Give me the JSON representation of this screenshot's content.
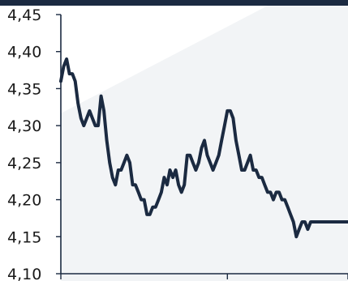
{
  "colors": {
    "top_bar": "#1b2a41",
    "line": "#1b2a41",
    "axis": "#1b2a41",
    "background": "#ffffff",
    "background_accent": "#f2f4f6"
  },
  "chart_data": {
    "type": "line",
    "title": "",
    "xlabel": "",
    "ylabel": "",
    "ylim": [
      4.1,
      4.45
    ],
    "yticks": [
      "4,45",
      "4,40",
      "4,35",
      "4,30",
      "4,25",
      "4,20",
      "4,15",
      "4,10"
    ],
    "ytick_values": [
      4.45,
      4.4,
      4.35,
      4.3,
      4.25,
      4.2,
      4.15,
      4.1
    ],
    "xlim": [
      0,
      100
    ],
    "x_tick_positions": [
      0,
      58,
      100
    ],
    "grid": false,
    "legend": "none",
    "series": [
      {
        "x": [
          0,
          1,
          2,
          3,
          4,
          5,
          6,
          7,
          8,
          9,
          10,
          11,
          12,
          13,
          14,
          15,
          16,
          17,
          18,
          19,
          20,
          21,
          22,
          23,
          24,
          25,
          26,
          27,
          28,
          29,
          30,
          31,
          32,
          33,
          34,
          35,
          36,
          37,
          38,
          39,
          40,
          41,
          42,
          43,
          44,
          45,
          46,
          47,
          48,
          49,
          50,
          51,
          52,
          53,
          54,
          55,
          56,
          57,
          58,
          59,
          60,
          61,
          62,
          63,
          64,
          65,
          66,
          67,
          68,
          69,
          70,
          71,
          72,
          73,
          74,
          75,
          76,
          77,
          78,
          79,
          80,
          81,
          82,
          83,
          84,
          85,
          86,
          87,
          88,
          89,
          90,
          91,
          92,
          93,
          94,
          95,
          96,
          97,
          98,
          99,
          100
        ],
        "values": [
          4.36,
          4.38,
          4.39,
          4.37,
          4.37,
          4.36,
          4.33,
          4.31,
          4.3,
          4.31,
          4.32,
          4.31,
          4.3,
          4.3,
          4.34,
          4.32,
          4.28,
          4.25,
          4.23,
          4.22,
          4.24,
          4.24,
          4.25,
          4.26,
          4.25,
          4.22,
          4.22,
          4.21,
          4.2,
          4.2,
          4.18,
          4.18,
          4.19,
          4.19,
          4.2,
          4.21,
          4.23,
          4.22,
          4.24,
          4.23,
          4.24,
          4.22,
          4.21,
          4.22,
          4.26,
          4.26,
          4.25,
          4.24,
          4.25,
          4.27,
          4.28,
          4.26,
          4.25,
          4.24,
          4.25,
          4.26,
          4.28,
          4.3,
          4.32,
          4.32,
          4.31,
          4.28,
          4.26,
          4.24,
          4.24,
          4.25,
          4.26,
          4.24,
          4.24,
          4.23,
          4.23,
          4.22,
          4.21,
          4.21,
          4.2,
          4.21,
          4.21,
          4.2,
          4.2,
          4.19,
          4.18,
          4.17,
          4.15,
          4.16,
          4.17,
          4.17,
          4.16,
          4.17,
          4.17,
          4.17,
          4.17,
          4.17,
          4.17,
          4.17,
          4.17,
          4.17,
          4.17,
          4.17,
          4.17,
          4.17,
          4.17
        ]
      }
    ]
  }
}
